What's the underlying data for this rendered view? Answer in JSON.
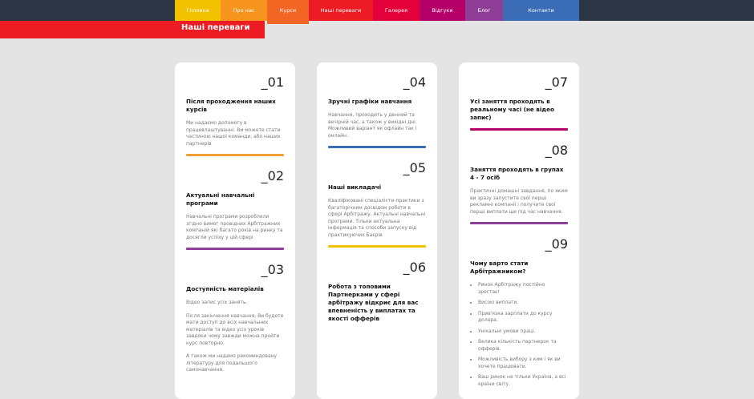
{
  "nav": [
    {
      "label": "Головна",
      "color": "#f2c100"
    },
    {
      "label": "Про нас",
      "color": "#f7941d"
    },
    {
      "label": "Курси",
      "color": "#f26522"
    },
    {
      "label": "Наші переваги",
      "color": "#ed1c24"
    },
    {
      "label": "Галерея",
      "color": "#e4003a"
    },
    {
      "label": "Відгуки",
      "color": "#b5006a"
    },
    {
      "label": "Блог",
      "color": "#8e3e96"
    },
    {
      "label": "Контакти",
      "color": "#3a6db5"
    }
  ],
  "title": "Наші переваги",
  "cols": [
    [
      {
        "num": "_01",
        "title": "Після проходження наших курсів",
        "paras": [
          "Ми надаємо допомогу в працевлаштуванні. Ви можете стати частиною нашої команди, або наших партнерів"
        ],
        "bar": "#f0a030"
      },
      {
        "num": "_02",
        "title": "Актуальні навчальні програми",
        "paras": [
          "Навчальні програми розроблели згідно вимог провідних Арбітражних компаній які багато років на ринку та досягли успіху у цій сфері"
        ],
        "bar": "#8e3e96"
      },
      {
        "num": "_03",
        "title": "Доступність матеріалів",
        "paras": [
          "Відео запис усіх занять.",
          "Після закінчення навчання, Ви будете мати доступ до всіх навчальних матеріалів та відео усіх уроків завдяки чому завжди можна пройти курс повторно.",
          "А також ми надамо рекомендовану літературу для подальшого самонавчання."
        ]
      }
    ],
    [
      {
        "num": "_04",
        "title": "Зручні графіки навчання",
        "paras": [
          "Навчання, проходить у денний та вечірній час, а також у вихідні дні. Можливий варіант як офлайн так і онлайн."
        ],
        "bar": "#3a6db5"
      },
      {
        "num": "_05",
        "title": "Наші викладачі",
        "paras": [
          "Кваліфіковані спеціалісти-практики з багаторічним досвідом роботи в сфері Арбітражу. Актуальні навчальні програми. Тільки актуальна інформація та способи запуску від практикуючих Баєрів"
        ],
        "bar": "#f2c100"
      },
      {
        "num": "_06",
        "title": "Робота з топовими Партнерками у сфері арбітражу відкриє для вас впевненість у виплатах та якості офферів",
        "paras": []
      }
    ],
    [
      {
        "num": "_07",
        "title": "Усі заняття проходять в реальному часі (не відео запис)",
        "paras": [],
        "bar": "#b5006a"
      },
      {
        "num": "_08",
        "title": "Заняття проходять в групах 4 - 7 осіб",
        "paras": [
          "Практичні домашні завдання, по яким ви зразу запустите свої перші рекламні компанії і получите свої перші виплати ще під час навчання."
        ],
        "bar": "#8e3e96"
      },
      {
        "num": "_09",
        "title": "Чому варто стати Арбітражником?",
        "paras": [],
        "list": [
          "Ринок Арбітражу постійно зростає!",
          "Високі виплати.",
          "Прив'язка зарплати до курсу долара.",
          "Унікальні умови праці.",
          "Велика кількість партнерок та офферів.",
          "Можливість вибору з ким і як ви хочете працювати.",
          "Ваш ринок не тільки Україна, а всі країни світу."
        ]
      }
    ]
  ]
}
